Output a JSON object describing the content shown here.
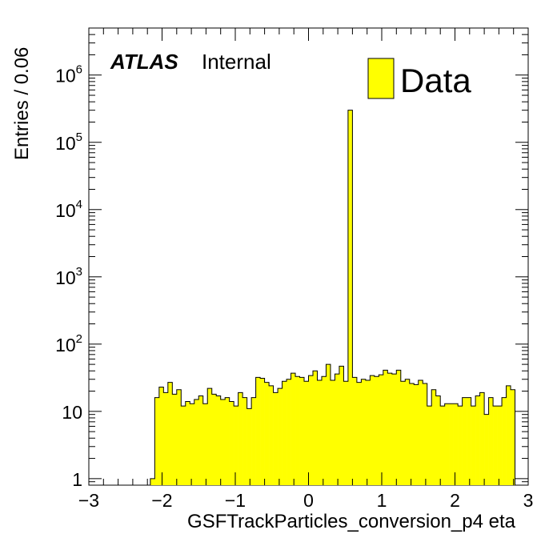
{
  "experiment_label": "ATLAS",
  "status_label": "Internal",
  "colors": {
    "fill": "#ffff00",
    "line": "#000000",
    "background": "#ffffff"
  },
  "chart_data": {
    "type": "bar",
    "histogram": true,
    "log_y": true,
    "grid": false,
    "legend_position": "top-right",
    "xlabel": "GSFTrackParticles_conversion_p4 eta",
    "ylabel": "Entries / 0.06",
    "xlim": [
      -3,
      3
    ],
    "ylim": [
      0.8,
      5000000
    ],
    "x_ticks": [
      -3,
      -2,
      -1,
      0,
      1,
      2,
      3
    ],
    "x_tick_labels": [
      "−3",
      "−2",
      "−1",
      "0",
      "1",
      "2",
      "3"
    ],
    "y_ticks": [
      1,
      10,
      100,
      1000,
      10000,
      100000,
      1000000
    ],
    "y_tick_labels": [
      {
        "base": "1",
        "exp": ""
      },
      {
        "base": "10",
        "exp": ""
      },
      {
        "base": "10",
        "exp": "2"
      },
      {
        "base": "10",
        "exp": "3"
      },
      {
        "base": "10",
        "exp": "4"
      },
      {
        "base": "10",
        "exp": "5"
      },
      {
        "base": "10",
        "exp": "6"
      }
    ],
    "bin_width": 0.06,
    "x_start": -2.16,
    "series": [
      {
        "name": "Data",
        "values": [
          1,
          16,
          23,
          19,
          27,
          18,
          21,
          12,
          14,
          13,
          15,
          17,
          13,
          22,
          18,
          17,
          15,
          16,
          14,
          12,
          19,
          16,
          11,
          16,
          32,
          31,
          27,
          24,
          19,
          22,
          28,
          30,
          37,
          33,
          32,
          28,
          34,
          40,
          29,
          33,
          50,
          29,
          36,
          47,
          28,
          300000,
          32,
          27,
          30,
          29,
          34,
          33,
          35,
          41,
          37,
          36,
          41,
          28,
          30,
          26,
          25,
          29,
          26,
          12,
          21,
          17,
          12,
          13,
          13,
          13,
          12,
          16,
          16,
          12,
          17,
          19,
          9,
          16,
          12,
          12,
          16,
          24,
          21
        ]
      }
    ]
  }
}
